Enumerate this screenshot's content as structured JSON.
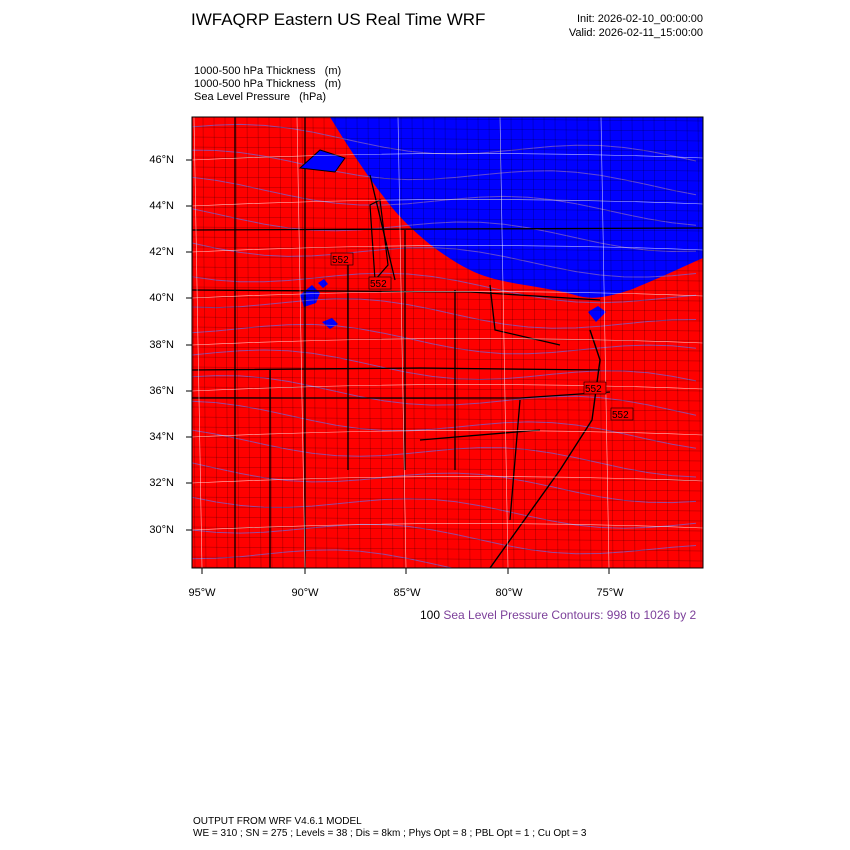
{
  "header": {
    "title": "IWFAQRP Eastern US Real Time WRF",
    "init": "Init: 2026-02-10_00:00:00",
    "valid": "Valid: 2026-02-11_15:00:00"
  },
  "fields": [
    {
      "name": "1000-500 hPa Thickness",
      "units": "(m)"
    },
    {
      "name": "1000-500 hPa Thickness",
      "units": "(m)"
    },
    {
      "name": "Sea Level Pressure",
      "units": "(hPa)"
    }
  ],
  "map": {
    "lat_labels": [
      "46°N",
      "44°N",
      "42°N",
      "40°N",
      "38°N",
      "36°N",
      "34°N",
      "32°N",
      "30°N"
    ],
    "lon_labels": [
      "95°W",
      "90°W",
      "85°W",
      "80°W",
      "75°W"
    ],
    "thickness_labels": [
      "552",
      "552",
      "552",
      "552"
    ],
    "colors": {
      "warm": "#ff0000",
      "cold": "#0000ff",
      "pressure_contour": "#7c5cc4",
      "borders": "#000000",
      "grid": "#ffffff"
    },
    "thickness_threshold_m": 552
  },
  "contour_info": {
    "lead": "100",
    "text": "Sea Level Pressure Contours: 998 to 1026 by 2"
  },
  "footer": {
    "line1": "OUTPUT FROM WRF V4.6.1 MODEL",
    "line2": "WE = 310 ; SN = 275 ; Levels = 38 ; Dis = 8km ; Phys Opt = 8 ; PBL Opt = 1 ; Cu Opt = 3"
  }
}
